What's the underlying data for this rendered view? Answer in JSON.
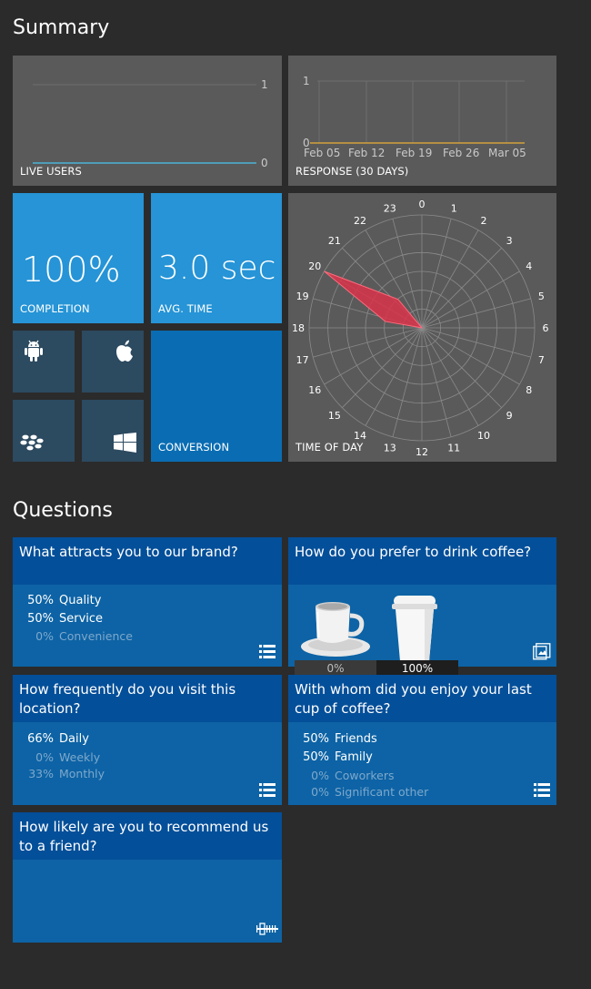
{
  "summary": {
    "title": "Summary",
    "live_users": {
      "label": "LIVE USERS",
      "y_max": "1",
      "y_min": "0"
    },
    "response": {
      "label": "RESPONSE (30 DAYS)",
      "y_max": "1",
      "y_min": "0",
      "dates": [
        "Feb 05",
        "Feb 12",
        "Feb 19",
        "Feb 26",
        "Mar 05"
      ]
    },
    "completion": {
      "value": "100%",
      "label": "COMPLETION"
    },
    "avg_time": {
      "value": "3.0 sec",
      "label": "AVG. TIME"
    },
    "platforms": [
      "android-icon",
      "apple-icon",
      "blackberry-icon",
      "windows-icon"
    ],
    "conversion": {
      "label": "CONVERSION"
    },
    "time_of_day": {
      "label": "TIME OF DAY",
      "hours": [
        "0",
        "1",
        "2",
        "3",
        "4",
        "5",
        "6",
        "7",
        "8",
        "9",
        "10",
        "11",
        "12",
        "13",
        "14",
        "15",
        "16",
        "17",
        "18",
        "19",
        "20",
        "21",
        "22",
        "23"
      ],
      "peak_hour": 20
    }
  },
  "questions": {
    "title": "Questions",
    "q1": {
      "title": "What attracts you to our brand?",
      "options": [
        {
          "pct": "50%",
          "label": "Quality",
          "dim": false
        },
        {
          "pct": "50%",
          "label": "Service",
          "dim": false
        },
        {
          "pct": "0%",
          "label": "Convenience",
          "dim": true
        }
      ]
    },
    "q2": {
      "title": "How do you prefer to drink coffee?",
      "options": [
        {
          "pct": "0%",
          "label": "cup-image"
        },
        {
          "pct": "100%",
          "label": "takeaway-cup-image"
        }
      ]
    },
    "q3": {
      "title": "How frequently do you visit this location?",
      "options": [
        {
          "pct": "66%",
          "label": "Daily",
          "dim": false
        },
        {
          "pct": "0%",
          "label": "Weekly",
          "dim": true
        },
        {
          "pct": "33%",
          "label": "Monthly",
          "dim": true
        }
      ]
    },
    "q4": {
      "title": "With whom did you enjoy your last cup of coffee?",
      "options": [
        {
          "pct": "50%",
          "label": "Friends",
          "dim": false
        },
        {
          "pct": "50%",
          "label": "Family",
          "dim": false
        },
        {
          "pct": "0%",
          "label": "Coworkers",
          "dim": true
        },
        {
          "pct": "0%",
          "label": "Significant other",
          "dim": true
        }
      ]
    },
    "q5": {
      "title": "How likely are you to recommend us to a friend?"
    }
  },
  "colors": {
    "background": "#2b2b2b",
    "tile_grey": "#5a5a5a",
    "tile_blue": "#2694d6",
    "tile_darkblue": "#0a6db3",
    "question_header": "#044f99",
    "question_body": "#0d63a5",
    "radar_fill": "#d9324a"
  }
}
